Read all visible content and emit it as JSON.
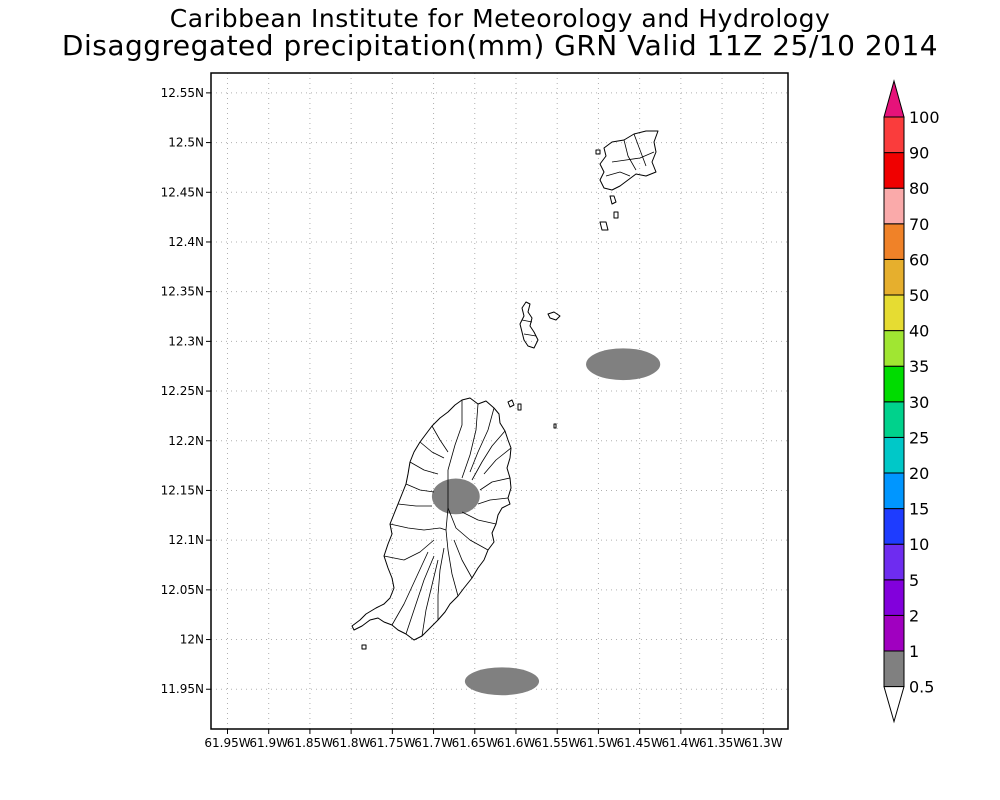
{
  "titles": {
    "line1": "Caribbean Institute for Meteorology and Hydrology",
    "line2": "Disaggregated precipitation(mm) GRN Valid 11Z 25/10 2014"
  },
  "map": {
    "lon_range": [
      -61.97,
      -61.27
    ],
    "lat_range": [
      11.91,
      12.57
    ],
    "lat_ticks": [
      {
        "value": 12.55,
        "label": "12.55N"
      },
      {
        "value": 12.5,
        "label": "12.5N"
      },
      {
        "value": 12.45,
        "label": "12.45N"
      },
      {
        "value": 12.4,
        "label": "12.4N"
      },
      {
        "value": 12.35,
        "label": "12.35N"
      },
      {
        "value": 12.3,
        "label": "12.3N"
      },
      {
        "value": 12.25,
        "label": "12.25N"
      },
      {
        "value": 12.2,
        "label": "12.2N"
      },
      {
        "value": 12.15,
        "label": "12.15N"
      },
      {
        "value": 12.1,
        "label": "12.1N"
      },
      {
        "value": 12.05,
        "label": "12.05N"
      },
      {
        "value": 12.0,
        "label": "12N"
      },
      {
        "value": 11.95,
        "label": "11.95N"
      }
    ],
    "lon_ticks": [
      {
        "value": -61.95,
        "label": "61.95W"
      },
      {
        "value": -61.9,
        "label": "61.9W"
      },
      {
        "value": -61.85,
        "label": "61.85W"
      },
      {
        "value": -61.8,
        "label": "61.8W"
      },
      {
        "value": -61.75,
        "label": "61.75W"
      },
      {
        "value": -61.7,
        "label": "61.7W"
      },
      {
        "value": -61.65,
        "label": "61.65W"
      },
      {
        "value": -61.6,
        "label": "61.6W"
      },
      {
        "value": -61.55,
        "label": "61.55W"
      },
      {
        "value": -61.5,
        "label": "61.5W"
      },
      {
        "value": -61.45,
        "label": "61.45W"
      },
      {
        "value": -61.4,
        "label": "61.4W"
      },
      {
        "value": -61.35,
        "label": "61.35W"
      },
      {
        "value": -61.3,
        "label": "61.3W"
      }
    ],
    "grid": "dotted",
    "land_outline_color": "#000000",
    "precip_areas": [
      {
        "lon_center": -61.47,
        "lat_center": 12.277,
        "lon_radius": 0.045,
        "lat_radius": 0.016,
        "class": "0.5-1",
        "color": "#808080"
      },
      {
        "lon_center": -61.673,
        "lat_center": 12.144,
        "lon_radius": 0.029,
        "lat_radius": 0.018,
        "class": "0.5-1",
        "color": "#808080"
      },
      {
        "lon_center": -61.617,
        "lat_center": 11.958,
        "lon_radius": 0.045,
        "lat_radius": 0.014,
        "class": "0.5-1",
        "color": "#808080"
      }
    ]
  },
  "colorbar": {
    "labels": [
      "0.5",
      "1",
      "2",
      "5",
      "10",
      "15",
      "20",
      "25",
      "30",
      "35",
      "40",
      "50",
      "60",
      "70",
      "80",
      "90",
      "100"
    ],
    "colors": [
      "#808080",
      "#a000c0",
      "#8200dc",
      "#6e2cf0",
      "#1e3cff",
      "#0096ff",
      "#00c8c8",
      "#00d28c",
      "#00dc00",
      "#a0e632",
      "#e6dc32",
      "#e6af2d",
      "#f08228",
      "#faaaaa",
      "#f00000",
      "#fa3c3c"
    ],
    "under_color": "#ffffff",
    "over_color": "#e6127a"
  }
}
